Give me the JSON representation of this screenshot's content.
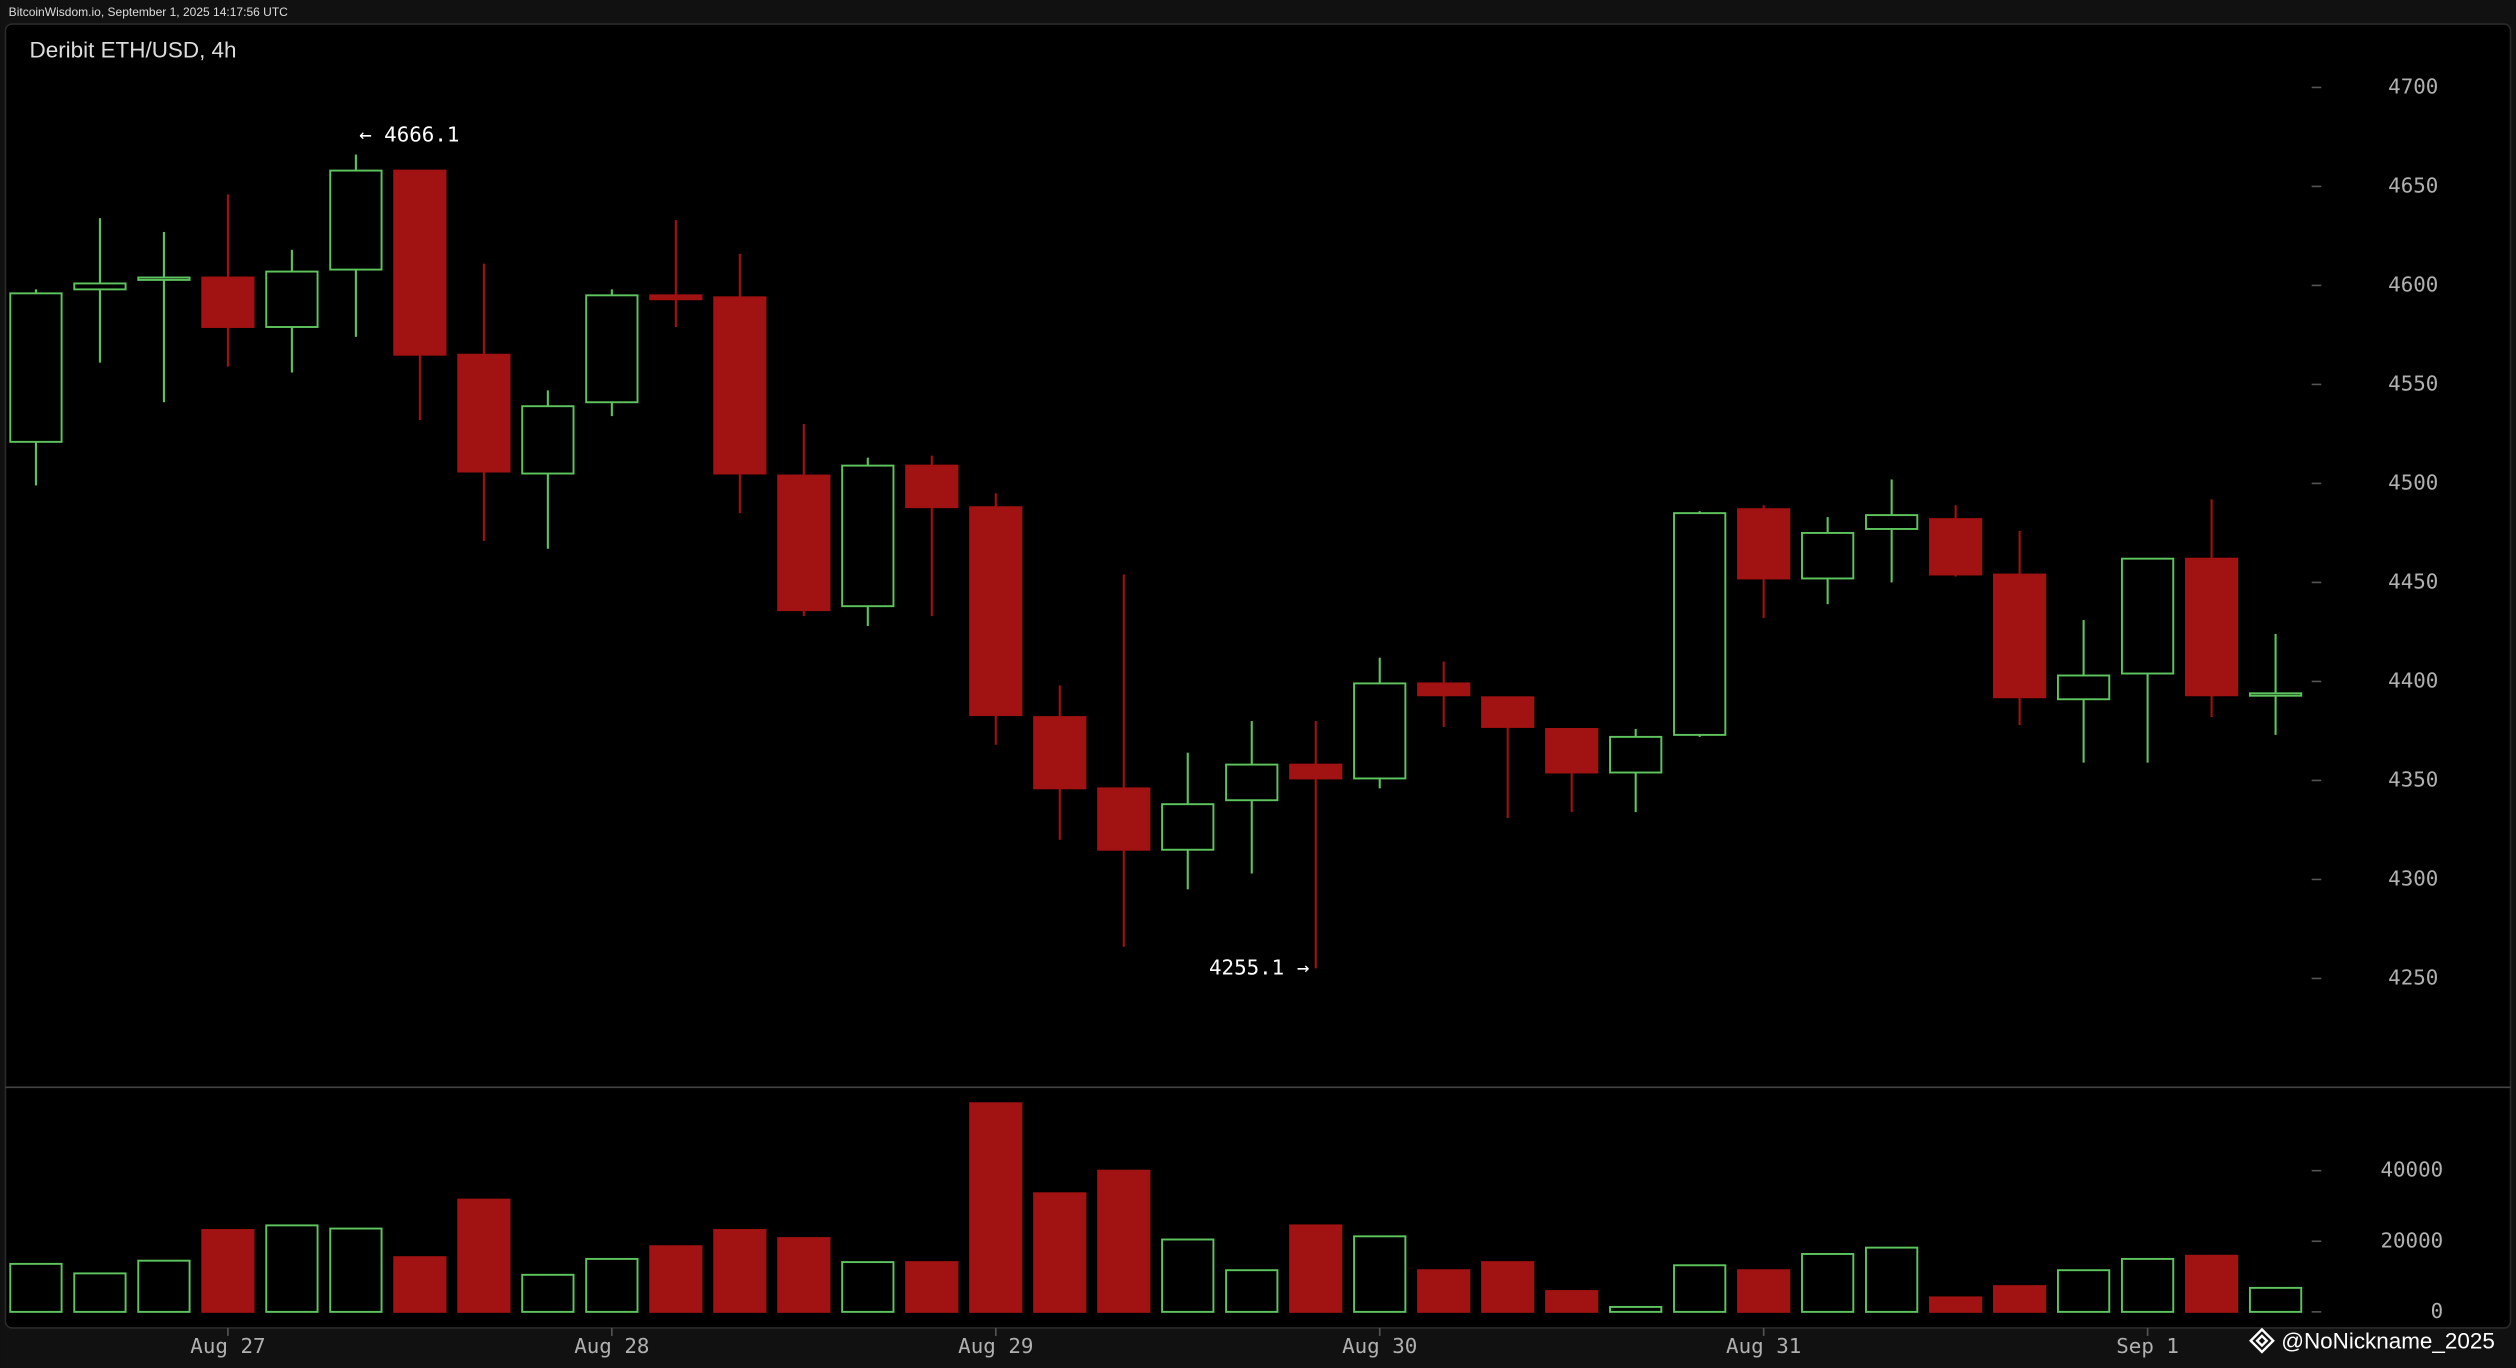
{
  "header": "BitcoinWisdom.io, September 1, 2025 14:17:56 UTC",
  "watermark": "@NoNickname_2025",
  "chart_data": {
    "type": "candlestick",
    "title": "Deribit ETH/USD, 4h",
    "categories": [
      null,
      null,
      null,
      "Aug 27",
      null,
      null,
      null,
      null,
      null,
      "Aug 28",
      null,
      null,
      null,
      null,
      null,
      "Aug 29",
      null,
      null,
      null,
      null,
      null,
      "Aug 30",
      null,
      null,
      null,
      null,
      null,
      "Aug 31",
      null,
      null,
      null,
      null,
      null,
      "Sep 1",
      null,
      null
    ],
    "open": [
      4521,
      4598,
      4603,
      4604,
      4579,
      4608,
      4658,
      4565,
      4505,
      4541,
      4595,
      4594,
      4504,
      4438,
      4509,
      4488,
      4382,
      4346,
      4315,
      4340,
      4358,
      4351,
      4399,
      4392,
      4376,
      4354,
      4373,
      4487,
      4452,
      4477,
      4482,
      4454,
      4391,
      4404,
      4462,
      4393
    ],
    "high": [
      4598,
      4634,
      4627,
      4646,
      4618,
      4666.1,
      4658,
      4611,
      4547,
      4598,
      4633,
      4616,
      4530,
      4513,
      4514,
      4495,
      4398,
      4454,
      4364,
      4380,
      4380,
      4412,
      4410,
      4392,
      4376,
      4376,
      4486,
      4489,
      4483,
      4502,
      4489,
      4476,
      4431,
      4462,
      4492,
      4424
    ],
    "low": [
      4499,
      4561,
      4541,
      4559,
      4556,
      4574,
      4532,
      4471,
      4467,
      4534,
      4579,
      4485,
      4433,
      4428,
      4433,
      4368,
      4320,
      4266,
      4295,
      4303,
      4255.1,
      4346,
      4377,
      4331,
      4334,
      4334,
      4372,
      4432,
      4439,
      4450,
      4453,
      4378,
      4359,
      4359,
      4382,
      4373
    ],
    "close": [
      4596,
      4601,
      4604,
      4579,
      4607,
      4658,
      4565,
      4506,
      4539,
      4595,
      4593,
      4505,
      4436,
      4509,
      4488,
      4383,
      4346,
      4315,
      4338,
      4358,
      4351,
      4399,
      4393,
      4377,
      4354,
      4372,
      4485,
      4452,
      4475,
      4484,
      4454,
      4392,
      4403,
      4462,
      4393,
      4394
    ],
    "up_color": "#5ec45e",
    "down_color": "#a11212",
    "ylim": [
      4195,
      4732
    ],
    "yticks": [
      4250,
      4300,
      4350,
      4400,
      4450,
      4500,
      4550,
      4600,
      4650,
      4700
    ],
    "annotations": [
      {
        "label": "← 4666.1",
        "value": 4666.1
      },
      {
        "label": "4255.1 →",
        "value": 4255.1
      }
    ],
    "volume": {
      "values": [
        13600,
        10900,
        14500,
        23200,
        24500,
        23600,
        15500,
        31800,
        10500,
        15000,
        18600,
        23200,
        20900,
        14100,
        14100,
        59100,
        33600,
        40000,
        20500,
        11800,
        24500,
        21400,
        11800,
        14100,
        5900,
        1400,
        13200,
        11800,
        16400,
        18200,
        4100,
        7300,
        11800,
        15000,
        15900,
        6800
      ],
      "ylim": [
        0,
        63600
      ],
      "yticks": [
        0,
        20000,
        40000
      ]
    }
  }
}
